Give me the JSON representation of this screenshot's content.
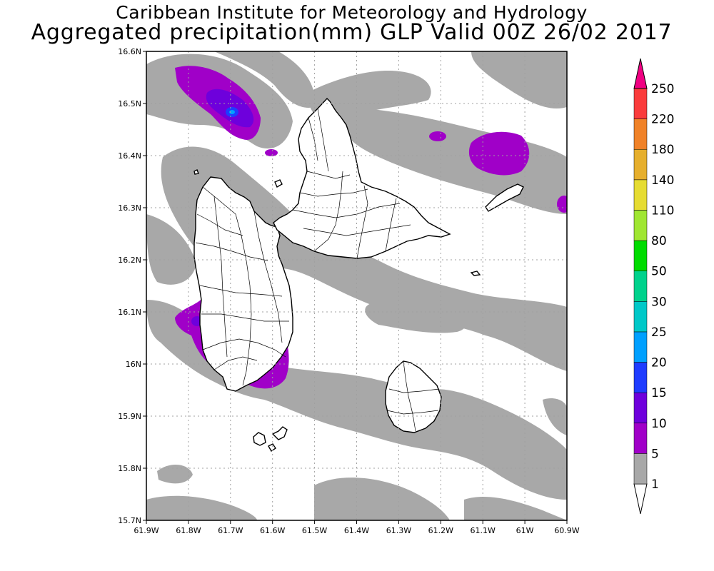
{
  "title": {
    "line1": "Caribbean Institute for Meteorology and Hydrology",
    "line2": "Aggregated precipitation(mm) GLP Valid 00Z 26/02 2017"
  },
  "map": {
    "lon_range": [
      -61.9,
      -60.9
    ],
    "lat_range": [
      15.7,
      16.6
    ],
    "lon_ticks": [
      "61.9W",
      "61.8W",
      "61.7W",
      "61.6W",
      "61.5W",
      "61.4W",
      "61.3W",
      "61.2W",
      "61.1W",
      "61W",
      "60.9W"
    ],
    "lat_ticks": [
      "15.7N",
      "15.8N",
      "15.9N",
      "16N",
      "16.1N",
      "16.2N",
      "16.3N",
      "16.4N",
      "16.5N",
      "16.6N"
    ],
    "grid": true
  },
  "colorbar": {
    "labels": [
      "1",
      "5",
      "10",
      "15",
      "20",
      "25",
      "30",
      "50",
      "80",
      "110",
      "140",
      "180",
      "220",
      "250"
    ],
    "colors": [
      "#ffffff",
      "#a8a8a8",
      "#a000c8",
      "#6e00dc",
      "#1e3cff",
      "#00a0ff",
      "#00c8c8",
      "#00d28c",
      "#00dc00",
      "#a0e632",
      "#e6dc32",
      "#e6af2d",
      "#f08228",
      "#fa3c3c",
      "#f00082"
    ]
  },
  "precip_colors": {
    "band_1_5": "#a8a8a8",
    "band_5_10": "#a000c8",
    "band_10_15": "#6e00dc",
    "band_15_20": "#1e3cff",
    "band_20_25": "#00a0ff"
  }
}
